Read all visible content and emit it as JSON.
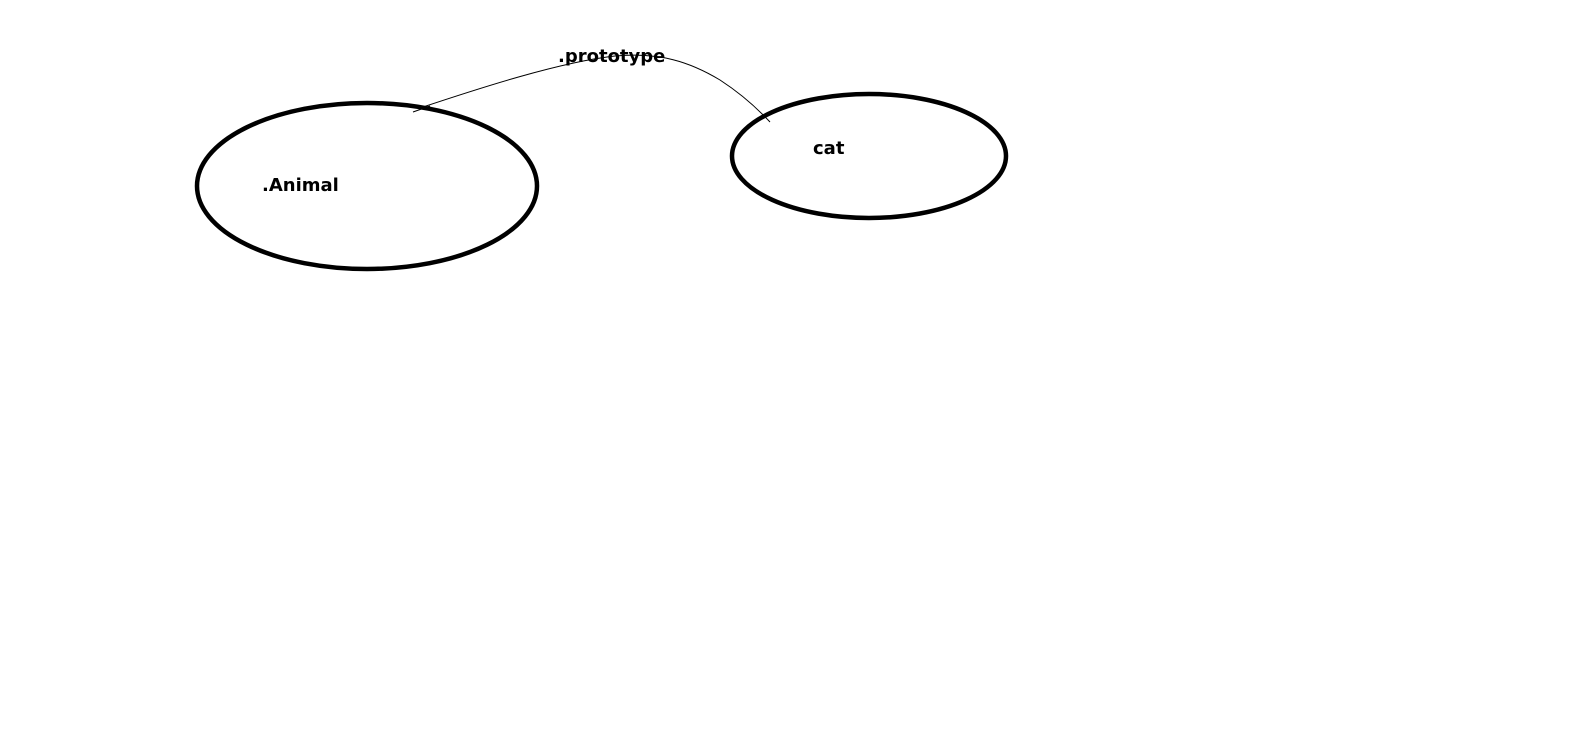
{
  "diagram": {
    "nodes": [
      {
        "id": "animal",
        "label": ".Animal"
      },
      {
        "id": "cat",
        "label": "cat"
      }
    ],
    "edges": [
      {
        "from": "animal",
        "to": "cat",
        "label": ".prototype"
      }
    ]
  },
  "colors": {
    "stroke": "#000000",
    "text": "#000000",
    "background": "#ffffff"
  }
}
